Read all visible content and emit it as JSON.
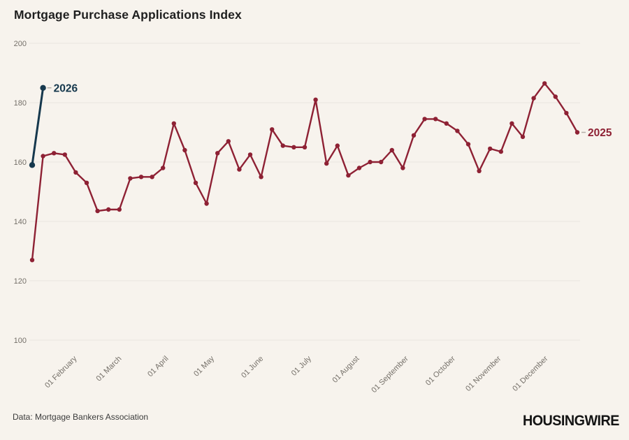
{
  "page": {
    "title": "Mortgage Purchase Applications Index",
    "source_note": "Data: Mortgage Bankers Association",
    "brand": "HOUSINGWIRE"
  },
  "colors": {
    "background": "#f7f3ed",
    "grid": "#eae6df",
    "axis_text": "#757069",
    "title_text": "#1f1f1f",
    "series_2025": "#8e2134",
    "series_2026": "#16384d",
    "label_dash": "#b3ada6",
    "footer_text": "#3b3b3b",
    "brand_text": "#141414"
  },
  "chart_data": {
    "type": "line",
    "title": "Mortgage Purchase Applications Index",
    "xlabel": "",
    "ylabel": "",
    "ylim": [
      100,
      200
    ],
    "yticks": [
      100,
      120,
      140,
      160,
      180,
      200
    ],
    "grid": "horizontal-only",
    "x_unit": "weekly observations, Jan through Dec",
    "xtick_labels": [
      "01 February",
      "01 March",
      "01 April",
      "01 May",
      "01 June",
      "01 July",
      "01 August",
      "01 September",
      "01 October",
      "01 November",
      "01 December"
    ],
    "xtick_week_positions": [
      4.0,
      8.1,
      12.4,
      16.6,
      21.1,
      25.5,
      29.9,
      34.4,
      38.7,
      42.9,
      47.2
    ],
    "legend_position": "inline-end-labels",
    "series": [
      {
        "name": "2025",
        "color": "#8e2134",
        "start_week": 0,
        "values": [
          127,
          162,
          163,
          162.5,
          156.5,
          153,
          143.5,
          144,
          144,
          154.5,
          155,
          155,
          158,
          173,
          164,
          153,
          146,
          163,
          167,
          157.5,
          162.5,
          155,
          171,
          165.5,
          165,
          165,
          181,
          159.5,
          165.5,
          155.5,
          158,
          160,
          160,
          164,
          158,
          169,
          174.5,
          174.5,
          173,
          170.5,
          166,
          157,
          164.5,
          163.5,
          173,
          168.5,
          181.5,
          186.5,
          182,
          176.5,
          170
        ]
      },
      {
        "name": "2026",
        "color": "#16384d",
        "start_week": 0,
        "values": [
          159,
          185
        ]
      }
    ],
    "annotations": [
      {
        "text": "2026",
        "week": 1,
        "value": 185,
        "color": "#16384d"
      },
      {
        "text": "2025",
        "week": 50,
        "value": 170,
        "color": "#8e2134"
      }
    ]
  }
}
